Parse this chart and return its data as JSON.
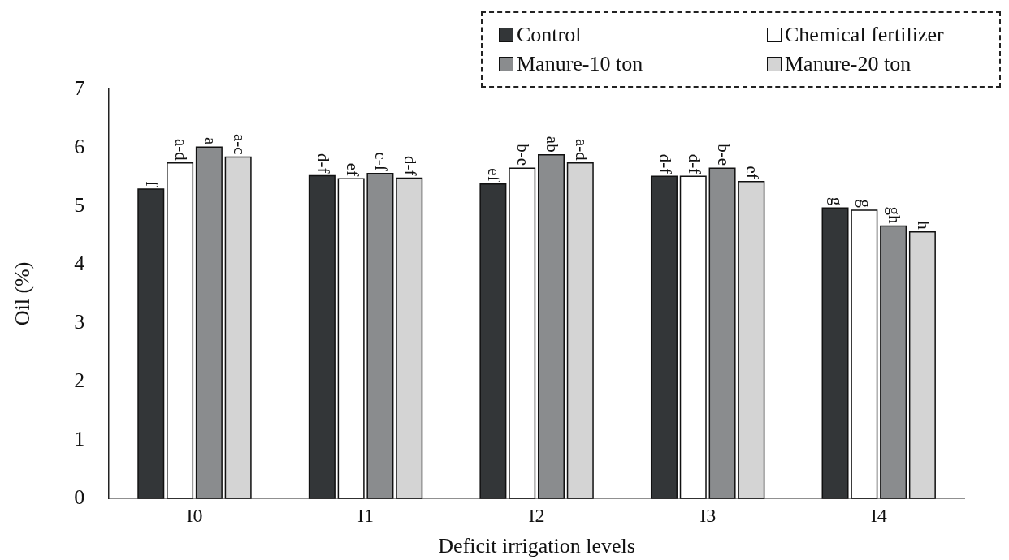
{
  "chart_data": {
    "type": "bar",
    "xlabel": "Deficit irrigation levels",
    "ylabel": "Oil (%)",
    "categories": [
      "I0",
      "I1",
      "I2",
      "I3",
      "I4"
    ],
    "series": [
      {
        "name": "Control",
        "color": "#333638",
        "values": [
          5.29,
          5.52,
          5.38,
          5.51,
          4.97
        ],
        "value_labels": [
          "f",
          "d-f",
          "ef",
          "d-f",
          "g"
        ]
      },
      {
        "name": "Chemical fertilizer",
        "color": "#ffffff",
        "values": [
          5.74,
          5.47,
          5.65,
          5.51,
          4.93
        ],
        "value_labels": [
          "a-d",
          "ef",
          "b-e",
          "d-f",
          "g"
        ]
      },
      {
        "name": "Manure-10 ton",
        "color": "#8a8c8e",
        "values": [
          6.01,
          5.56,
          5.88,
          5.65,
          4.66
        ],
        "value_labels": [
          "a",
          "c-f",
          "ab",
          "b-e",
          "gh"
        ]
      },
      {
        "name": "Manure-20 ton",
        "color": "#d4d4d4",
        "values": [
          5.84,
          5.48,
          5.74,
          5.42,
          4.56
        ],
        "value_labels": [
          "a-c",
          "d-f",
          "a-d",
          "ef",
          "h"
        ]
      }
    ],
    "ylim": [
      0,
      7
    ],
    "yticks": [
      0,
      1,
      2,
      3,
      4,
      5,
      6,
      7
    ],
    "grid": false,
    "legend": "top right"
  }
}
